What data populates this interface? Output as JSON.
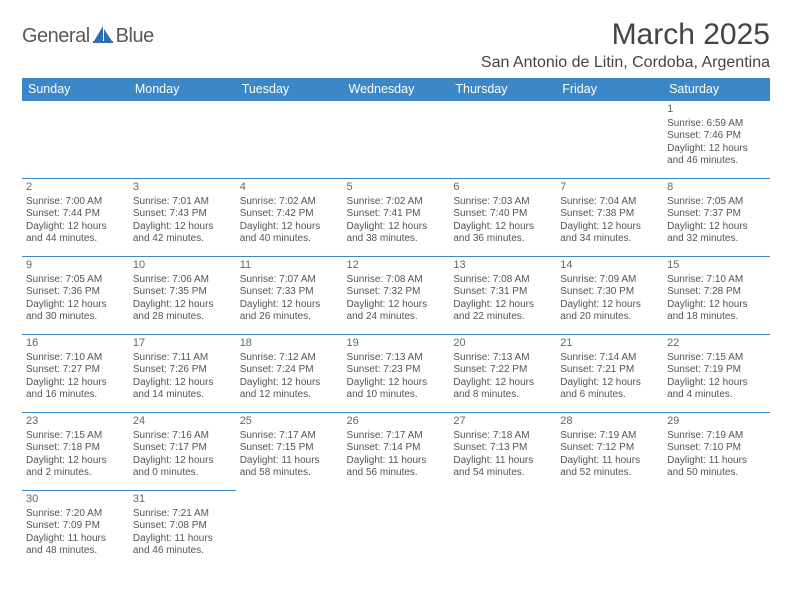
{
  "logo": {
    "word1": "General",
    "word2": "Blue"
  },
  "title": "March 2025",
  "location": "San Antonio de Litin, Cordoba, Argentina",
  "header_color": "#3b87c8",
  "day_headers": [
    "Sunday",
    "Monday",
    "Tuesday",
    "Wednesday",
    "Thursday",
    "Friday",
    "Saturday"
  ],
  "weeks": [
    [
      null,
      null,
      null,
      null,
      null,
      null,
      {
        "d": "1",
        "sr": "Sunrise: 6:59 AM",
        "ss": "Sunset: 7:46 PM",
        "dl1": "Daylight: 12 hours",
        "dl2": "and 46 minutes."
      }
    ],
    [
      {
        "d": "2",
        "sr": "Sunrise: 7:00 AM",
        "ss": "Sunset: 7:44 PM",
        "dl1": "Daylight: 12 hours",
        "dl2": "and 44 minutes."
      },
      {
        "d": "3",
        "sr": "Sunrise: 7:01 AM",
        "ss": "Sunset: 7:43 PM",
        "dl1": "Daylight: 12 hours",
        "dl2": "and 42 minutes."
      },
      {
        "d": "4",
        "sr": "Sunrise: 7:02 AM",
        "ss": "Sunset: 7:42 PM",
        "dl1": "Daylight: 12 hours",
        "dl2": "and 40 minutes."
      },
      {
        "d": "5",
        "sr": "Sunrise: 7:02 AM",
        "ss": "Sunset: 7:41 PM",
        "dl1": "Daylight: 12 hours",
        "dl2": "and 38 minutes."
      },
      {
        "d": "6",
        "sr": "Sunrise: 7:03 AM",
        "ss": "Sunset: 7:40 PM",
        "dl1": "Daylight: 12 hours",
        "dl2": "and 36 minutes."
      },
      {
        "d": "7",
        "sr": "Sunrise: 7:04 AM",
        "ss": "Sunset: 7:38 PM",
        "dl1": "Daylight: 12 hours",
        "dl2": "and 34 minutes."
      },
      {
        "d": "8",
        "sr": "Sunrise: 7:05 AM",
        "ss": "Sunset: 7:37 PM",
        "dl1": "Daylight: 12 hours",
        "dl2": "and 32 minutes."
      }
    ],
    [
      {
        "d": "9",
        "sr": "Sunrise: 7:05 AM",
        "ss": "Sunset: 7:36 PM",
        "dl1": "Daylight: 12 hours",
        "dl2": "and 30 minutes."
      },
      {
        "d": "10",
        "sr": "Sunrise: 7:06 AM",
        "ss": "Sunset: 7:35 PM",
        "dl1": "Daylight: 12 hours",
        "dl2": "and 28 minutes."
      },
      {
        "d": "11",
        "sr": "Sunrise: 7:07 AM",
        "ss": "Sunset: 7:33 PM",
        "dl1": "Daylight: 12 hours",
        "dl2": "and 26 minutes."
      },
      {
        "d": "12",
        "sr": "Sunrise: 7:08 AM",
        "ss": "Sunset: 7:32 PM",
        "dl1": "Daylight: 12 hours",
        "dl2": "and 24 minutes."
      },
      {
        "d": "13",
        "sr": "Sunrise: 7:08 AM",
        "ss": "Sunset: 7:31 PM",
        "dl1": "Daylight: 12 hours",
        "dl2": "and 22 minutes."
      },
      {
        "d": "14",
        "sr": "Sunrise: 7:09 AM",
        "ss": "Sunset: 7:30 PM",
        "dl1": "Daylight: 12 hours",
        "dl2": "and 20 minutes."
      },
      {
        "d": "15",
        "sr": "Sunrise: 7:10 AM",
        "ss": "Sunset: 7:28 PM",
        "dl1": "Daylight: 12 hours",
        "dl2": "and 18 minutes."
      }
    ],
    [
      {
        "d": "16",
        "sr": "Sunrise: 7:10 AM",
        "ss": "Sunset: 7:27 PM",
        "dl1": "Daylight: 12 hours",
        "dl2": "and 16 minutes."
      },
      {
        "d": "17",
        "sr": "Sunrise: 7:11 AM",
        "ss": "Sunset: 7:26 PM",
        "dl1": "Daylight: 12 hours",
        "dl2": "and 14 minutes."
      },
      {
        "d": "18",
        "sr": "Sunrise: 7:12 AM",
        "ss": "Sunset: 7:24 PM",
        "dl1": "Daylight: 12 hours",
        "dl2": "and 12 minutes."
      },
      {
        "d": "19",
        "sr": "Sunrise: 7:13 AM",
        "ss": "Sunset: 7:23 PM",
        "dl1": "Daylight: 12 hours",
        "dl2": "and 10 minutes."
      },
      {
        "d": "20",
        "sr": "Sunrise: 7:13 AM",
        "ss": "Sunset: 7:22 PM",
        "dl1": "Daylight: 12 hours",
        "dl2": "and 8 minutes."
      },
      {
        "d": "21",
        "sr": "Sunrise: 7:14 AM",
        "ss": "Sunset: 7:21 PM",
        "dl1": "Daylight: 12 hours",
        "dl2": "and 6 minutes."
      },
      {
        "d": "22",
        "sr": "Sunrise: 7:15 AM",
        "ss": "Sunset: 7:19 PM",
        "dl1": "Daylight: 12 hours",
        "dl2": "and 4 minutes."
      }
    ],
    [
      {
        "d": "23",
        "sr": "Sunrise: 7:15 AM",
        "ss": "Sunset: 7:18 PM",
        "dl1": "Daylight: 12 hours",
        "dl2": "and 2 minutes."
      },
      {
        "d": "24",
        "sr": "Sunrise: 7:16 AM",
        "ss": "Sunset: 7:17 PM",
        "dl1": "Daylight: 12 hours",
        "dl2": "and 0 minutes."
      },
      {
        "d": "25",
        "sr": "Sunrise: 7:17 AM",
        "ss": "Sunset: 7:15 PM",
        "dl1": "Daylight: 11 hours",
        "dl2": "and 58 minutes."
      },
      {
        "d": "26",
        "sr": "Sunrise: 7:17 AM",
        "ss": "Sunset: 7:14 PM",
        "dl1": "Daylight: 11 hours",
        "dl2": "and 56 minutes."
      },
      {
        "d": "27",
        "sr": "Sunrise: 7:18 AM",
        "ss": "Sunset: 7:13 PM",
        "dl1": "Daylight: 11 hours",
        "dl2": "and 54 minutes."
      },
      {
        "d": "28",
        "sr": "Sunrise: 7:19 AM",
        "ss": "Sunset: 7:12 PM",
        "dl1": "Daylight: 11 hours",
        "dl2": "and 52 minutes."
      },
      {
        "d": "29",
        "sr": "Sunrise: 7:19 AM",
        "ss": "Sunset: 7:10 PM",
        "dl1": "Daylight: 11 hours",
        "dl2": "and 50 minutes."
      }
    ],
    [
      {
        "d": "30",
        "sr": "Sunrise: 7:20 AM",
        "ss": "Sunset: 7:09 PM",
        "dl1": "Daylight: 11 hours",
        "dl2": "and 48 minutes."
      },
      {
        "d": "31",
        "sr": "Sunrise: 7:21 AM",
        "ss": "Sunset: 7:08 PM",
        "dl1": "Daylight: 11 hours",
        "dl2": "and 46 minutes."
      },
      null,
      null,
      null,
      null,
      null
    ]
  ]
}
